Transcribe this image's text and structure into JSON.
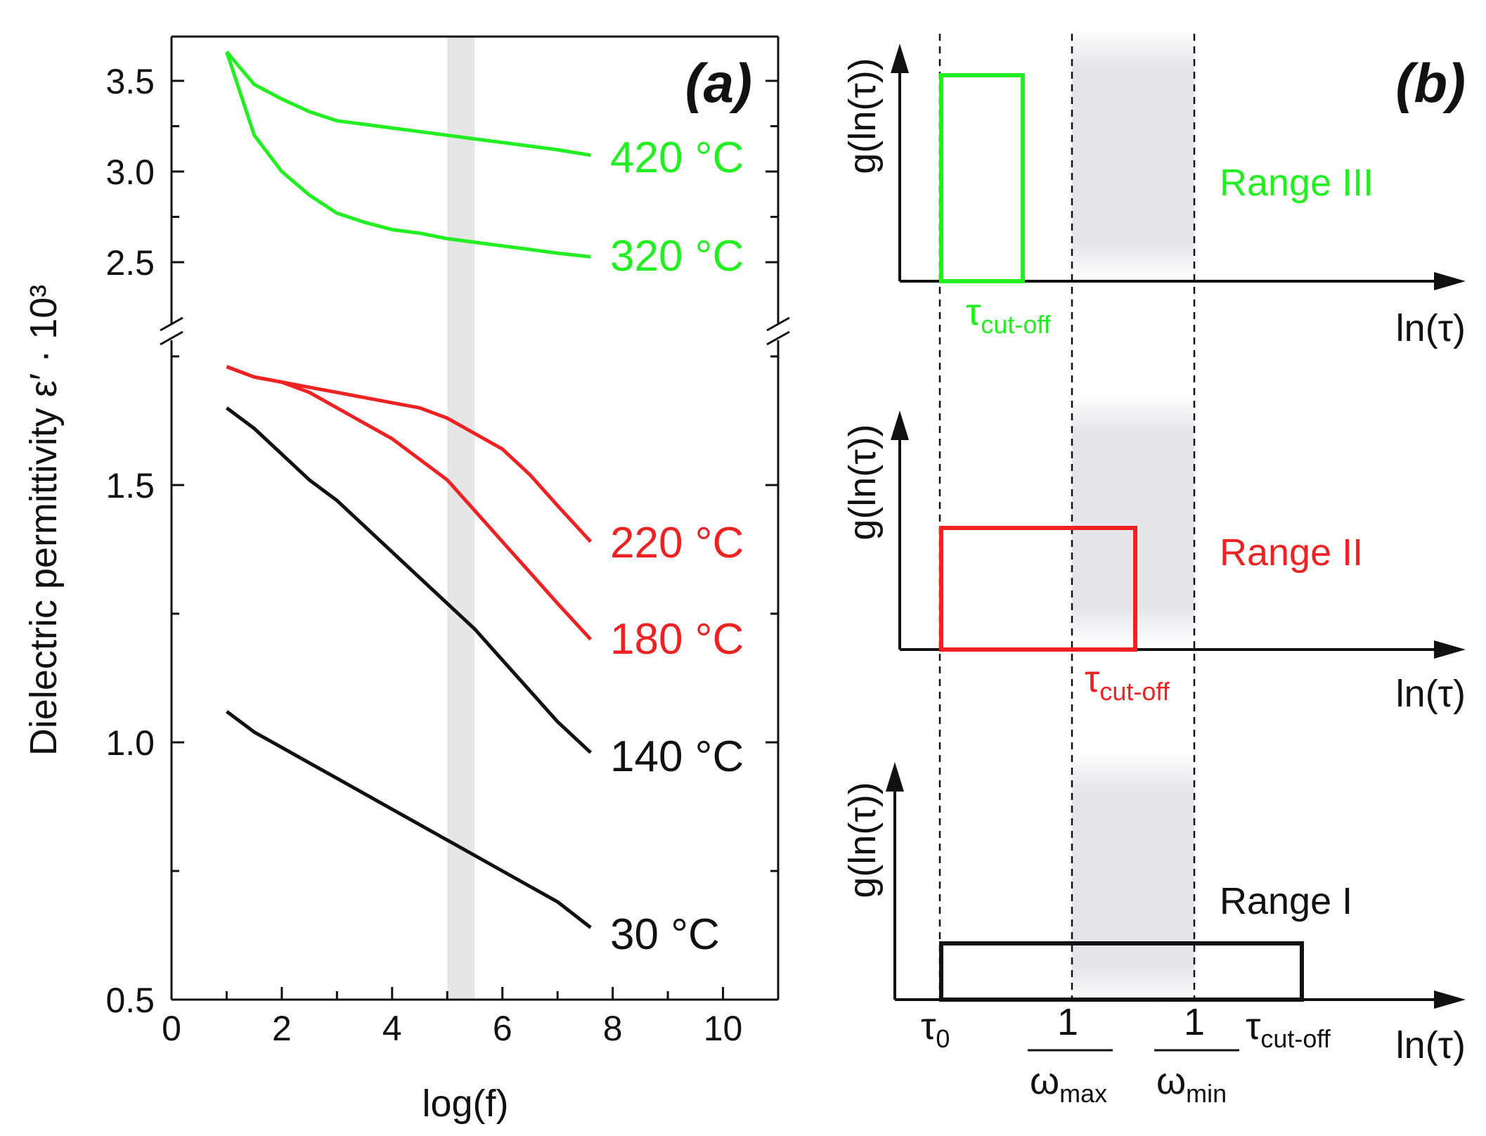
{
  "colors": {
    "green": "#22ee22",
    "red": "#ee2222",
    "black": "#111111",
    "shade": "#e6e6e6"
  },
  "chart_data": [
    {
      "panel": "(a)",
      "type": "line",
      "xlabel": "log(f)",
      "ylabel": "Dielectric permittivity ε′ · 10³",
      "xlim": [
        0,
        11
      ],
      "x_ticks": [
        "0",
        "2",
        "4",
        "6",
        "8",
        "10"
      ],
      "y_ticks_upper": [
        "2.5",
        "3.0",
        "3.5"
      ],
      "y_ticks_lower": [
        "0.5",
        "1.0",
        "1.5"
      ],
      "axis_break": true,
      "shaded_band_x": [
        5.0,
        5.5
      ],
      "x": [
        1.0,
        1.5,
        2.0,
        2.5,
        3.0,
        3.5,
        4.0,
        4.5,
        5.0,
        5.5,
        6.0,
        6.5,
        7.0,
        7.6
      ],
      "series": [
        {
          "name": "420 °C",
          "color": "green",
          "values": [
            3.66,
            3.48,
            3.4,
            3.33,
            3.28,
            3.26,
            3.24,
            3.22,
            3.2,
            3.18,
            3.16,
            3.14,
            3.12,
            3.09
          ]
        },
        {
          "name": "320 °C",
          "color": "green",
          "values": [
            3.66,
            3.2,
            3.0,
            2.87,
            2.77,
            2.72,
            2.68,
            2.66,
            2.63,
            2.61,
            2.59,
            2.57,
            2.55,
            2.53
          ]
        },
        {
          "name": "220 °C",
          "color": "red",
          "values": [
            1.73,
            1.71,
            1.7,
            1.69,
            1.68,
            1.67,
            1.66,
            1.65,
            1.63,
            1.6,
            1.57,
            1.52,
            1.46,
            1.39
          ]
        },
        {
          "name": "180 °C",
          "color": "red",
          "values": [
            1.73,
            1.71,
            1.7,
            1.68,
            1.65,
            1.62,
            1.59,
            1.55,
            1.51,
            1.45,
            1.39,
            1.33,
            1.27,
            1.2
          ]
        },
        {
          "name": "140 °C",
          "color": "black",
          "values": [
            1.65,
            1.61,
            1.56,
            1.51,
            1.47,
            1.42,
            1.37,
            1.32,
            1.27,
            1.22,
            1.16,
            1.1,
            1.04,
            0.98
          ]
        },
        {
          "name": "30 °C",
          "color": "black",
          "values": [
            1.06,
            1.02,
            0.99,
            0.96,
            0.93,
            0.9,
            0.87,
            0.84,
            0.81,
            0.78,
            0.75,
            0.72,
            0.69,
            0.64
          ]
        }
      ]
    },
    {
      "panel": "(b)",
      "type": "diagram",
      "ylabel": "g(ln(τ))",
      "xlabel": "ln(τ)",
      "x_markers": {
        "tau0": "τ",
        "tau0_sub": "0",
        "one": "1",
        "omega": "ω",
        "omega_max_sub": "max",
        "omega_min_sub": "min",
        "tau_cut": "τ",
        "tau_cut_sub": "cut-off"
      },
      "ranges": [
        {
          "label": "Range III",
          "color": "green"
        },
        {
          "label": "Range II",
          "color": "red"
        },
        {
          "label": "Range I",
          "color": "black"
        }
      ]
    }
  ]
}
